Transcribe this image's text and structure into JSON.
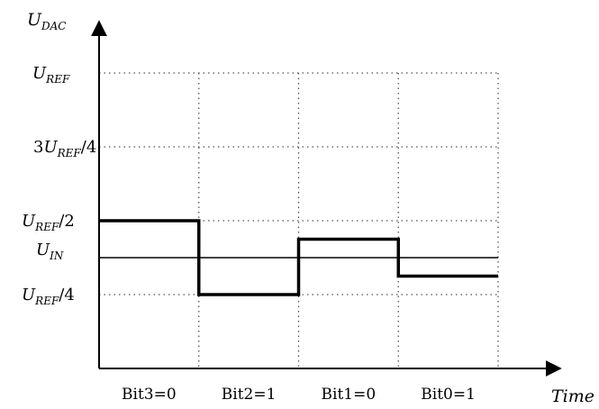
{
  "chart_data": {
    "type": "line",
    "xlabel": "Time",
    "ylabel": {
      "main": "U",
      "sub": "DAC"
    },
    "ylim": [
      0,
      1
    ],
    "xlim": [
      0,
      4
    ],
    "grid": true,
    "y_ticks": [
      {
        "value": 1.0,
        "coef": "",
        "main": "U",
        "sub": "REF",
        "suffix": ""
      },
      {
        "value": 0.75,
        "coef": "3",
        "main": "U",
        "sub": "REF",
        "suffix": "/4"
      },
      {
        "value": 0.5,
        "coef": "",
        "main": "U",
        "sub": "REF",
        "suffix": "/2"
      },
      {
        "value": 0.25,
        "coef": "",
        "main": "U",
        "sub": "REF",
        "suffix": "/4"
      }
    ],
    "reference_line": {
      "value": 0.375,
      "main": "U",
      "sub": "IN"
    },
    "categories": [
      "Bit3=0",
      "Bit2=1",
      "Bit1=0",
      "Bit0=1"
    ],
    "series": [
      {
        "values": [
          0.5,
          0.25,
          0.4375,
          0.3125
        ]
      }
    ],
    "colors": {
      "line": "#000000",
      "grid": "#555555"
    }
  }
}
